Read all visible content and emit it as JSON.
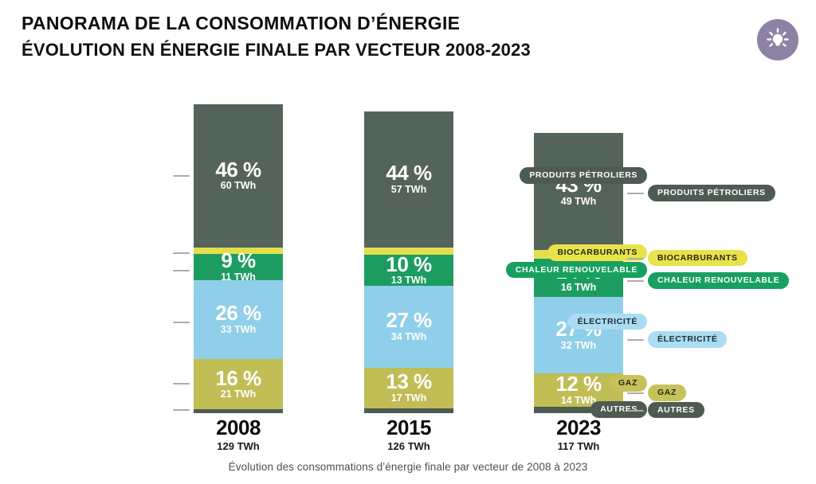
{
  "header": {
    "title_line1": "PANORAMA DE LA CONSOMMATION D’ÉNERGIE",
    "title_line2": "ÉVOLUTION EN ÉNERGIE FINALE PAR VECTEUR 2008-2023"
  },
  "icon": {
    "name": "lightbulb-icon",
    "circle_color": "#8d81a4",
    "glyph_color": "#ffffff"
  },
  "caption": "Évolution des consommations d’énergie finale par vecteur de 2008 à 2023",
  "vectors": {
    "petroliers": {
      "label": "PRODUITS PÉTROLIERS",
      "bar_color": "#55645b",
      "pill_color": "#4d5b53",
      "pill_text_color": "#ffffff"
    },
    "biocarburants": {
      "label": "BIOCARBURANTS",
      "bar_color": "#e3df4c",
      "pill_color": "#e8e34b",
      "pill_text_color": "#23281a"
    },
    "chaleur": {
      "label": "CHALEUR RENOUVELABLE",
      "bar_color": "#1d9c61",
      "pill_color": "#17a05f",
      "pill_text_color": "#ffffff"
    },
    "electricite": {
      "label": "ÉLECTRICITÉ",
      "bar_color": "#90cfe9",
      "pill_color": "#abdcf3",
      "pill_text_color": "#1c2b33"
    },
    "gaz": {
      "label": "GAZ",
      "bar_color": "#c0bd55",
      "pill_color": "#c6c25a",
      "pill_text_color": "#2a2a18"
    },
    "autres": {
      "label": "AUTRES",
      "bar_color": "#4d5b53",
      "pill_color": "#4d5b53",
      "pill_text_color": "#ffffff"
    }
  },
  "chart_data": {
    "type": "bar",
    "stacked": true,
    "unit": "TWh",
    "pct_suffix": " %",
    "twh_suffix": " TWh",
    "title": "PANORAMA DE LA CONSOMMATION D’ÉNERGIE — ÉVOLUTION EN ÉNERGIE FINALE PAR VECTEUR 2008-2023",
    "subtitle": "Évolution des consommations d’énergie finale par vecteur de 2008 à 2023",
    "categories": [
      "2008",
      "2015",
      "2023"
    ],
    "totals": [
      {
        "year": "2008",
        "twh": 129,
        "label": "129 TWh"
      },
      {
        "year": "2015",
        "twh": 126,
        "label": "126 TWh"
      },
      {
        "year": "2023",
        "twh": 117,
        "label": "117 TWh"
      }
    ],
    "series": [
      {
        "key": "petroliers",
        "name": "PRODUITS PÉTROLIERS",
        "pct": [
          46,
          44,
          43
        ],
        "twh": [
          60,
          57,
          49
        ],
        "twh_est": [
          60,
          57,
          49
        ]
      },
      {
        "key": "biocarburants",
        "name": "BIOCARBURANTS",
        "pct": [
          null,
          null,
          null
        ],
        "twh": [
          null,
          null,
          null
        ],
        "twh_est": [
          2.5,
          3,
          3.5
        ]
      },
      {
        "key": "chaleur",
        "name": "CHALEUR RENOUVELABLE",
        "pct": [
          9,
          10,
          14
        ],
        "twh": [
          11,
          13,
          16
        ],
        "twh_est": [
          11,
          13,
          16
        ]
      },
      {
        "key": "electricite",
        "name": "ÉLECTRICITÉ",
        "pct": [
          26,
          27,
          27
        ],
        "twh": [
          33,
          34,
          32
        ],
        "twh_est": [
          33,
          34,
          32
        ]
      },
      {
        "key": "gaz",
        "name": "GAZ",
        "pct": [
          16,
          13,
          12
        ],
        "twh": [
          21,
          17,
          14
        ],
        "twh_est": [
          21,
          17,
          14
        ]
      },
      {
        "key": "autres",
        "name": "AUTRES",
        "pct": [
          null,
          null,
          null
        ],
        "twh": [
          null,
          null,
          null
        ],
        "twh_est": [
          1.5,
          2,
          2.5
        ]
      }
    ],
    "legend_position": "left-and-right-callouts",
    "grid": false
  }
}
